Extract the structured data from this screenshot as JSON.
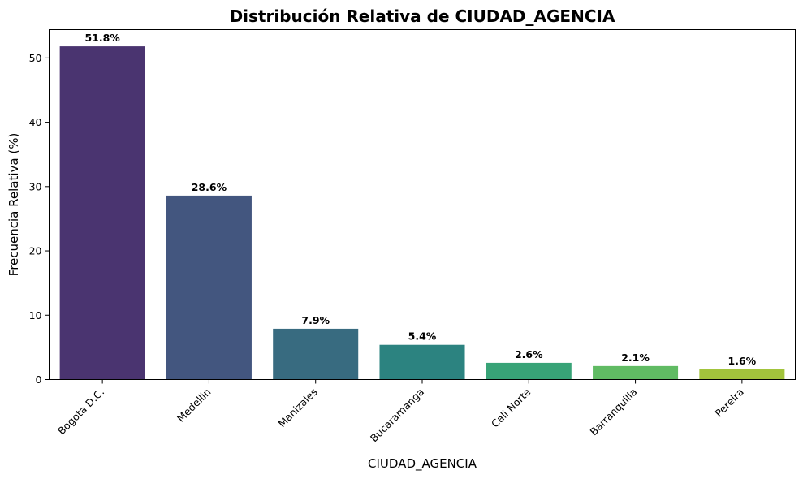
{
  "chart_data": {
    "type": "bar",
    "title": "Distribución Relativa de CIUDAD_AGENCIA",
    "xlabel": "CIUDAD_AGENCIA",
    "ylabel": "Frecuencia Relativa (%)",
    "categories": [
      "Bogota D.C.",
      "Medellin",
      "Manizales",
      "Bucaramanga",
      "Cali Norte",
      "Barranquilla",
      "Pereira"
    ],
    "values": [
      51.8,
      28.6,
      7.9,
      5.4,
      2.6,
      2.1,
      1.6
    ],
    "value_labels": [
      "51.8%",
      "28.6%",
      "7.9%",
      "5.4%",
      "2.6%",
      "2.1%",
      "1.6%"
    ],
    "colors": [
      "#4a3470",
      "#43567f",
      "#386b80",
      "#2c8380",
      "#38a377",
      "#60bb63",
      "#a2c43c"
    ],
    "y_ticks": [
      0,
      10,
      20,
      30,
      40,
      50
    ],
    "ylim": [
      0,
      54.4
    ],
    "grid": false,
    "legend": "none"
  }
}
